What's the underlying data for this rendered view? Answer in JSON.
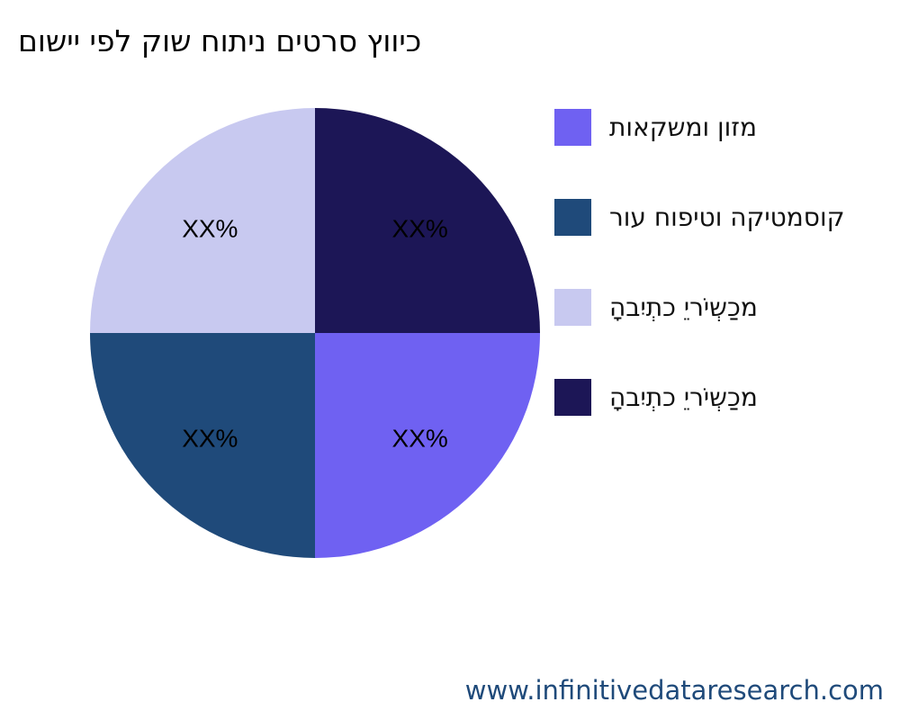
{
  "chart_data": {
    "type": "pie",
    "title": "םושיי יפל קוש חותינ םיטרס ץוויכ",
    "slices": [
      {
        "label": "תואקשמו ןוזמ",
        "value": 25,
        "data_label": "XX%",
        "color": "#6f61f2"
      },
      {
        "label": "רוע חופיטו הקיטמסוק",
        "value": 25,
        "data_label": "XX%",
        "color": "#1f4a7a"
      },
      {
        "label": "הָביִתְכ יֵריֹשְכַמ",
        "value": 25,
        "data_label": "XX%",
        "color": "#c8c9f0"
      },
      {
        "label": "הָביִתְכ יֵריֹשְכַמ",
        "value": 25,
        "data_label": "XX%",
        "color": "#1c1656"
      }
    ],
    "start_angle": "3 o'clock",
    "direction": "clockwise",
    "legend_position": "right"
  },
  "watermark": "www.infinitivedataresearch.com"
}
